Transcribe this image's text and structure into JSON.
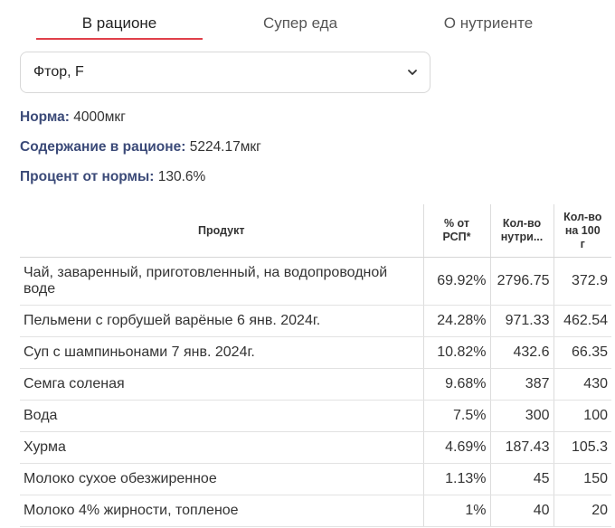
{
  "tabs": [
    {
      "label": "В рационе",
      "active": true
    },
    {
      "label": "Супер еда",
      "active": false
    },
    {
      "label": "О нутриенте",
      "active": false
    }
  ],
  "nutrient_select": {
    "value": "Фтор, F"
  },
  "info": {
    "norm_label": "Норма:",
    "norm_value": "4000мкг",
    "content_label": "Содержание в рационе:",
    "content_value": "5224.17мкг",
    "percent_label": "Процент от нормы:",
    "percent_value": "130.6%"
  },
  "table": {
    "headers": {
      "product": "Продукт",
      "pct_line1": "% от",
      "pct_line2": "РСП*",
      "amount_line1": "Кол-во",
      "amount_line2": "нутри...",
      "per100_line1": "Кол-во",
      "per100_line2": "на 100",
      "per100_line3": "г"
    },
    "rows": [
      {
        "name": "Чай, заваренный, приготовленный, на водопроводной воде",
        "pct": "69.92%",
        "amount": "2796.75",
        "per100": "372.9"
      },
      {
        "name": "Пельмени с горбушей варёные 6 янв. 2024г.",
        "pct": "24.28%",
        "amount": "971.33",
        "per100": "462.54"
      },
      {
        "name": "Суп с шампиньонами 7 янв. 2024г.",
        "pct": "10.82%",
        "amount": "432.6",
        "per100": "66.35"
      },
      {
        "name": "Семга соленая",
        "pct": "9.68%",
        "amount": "387",
        "per100": "430"
      },
      {
        "name": "Вода",
        "pct": "7.5%",
        "amount": "300",
        "per100": "100"
      },
      {
        "name": "Хурма",
        "pct": "4.69%",
        "amount": "187.43",
        "per100": "105.3"
      },
      {
        "name": "Молоко сухое обезжиренное",
        "pct": "1.13%",
        "amount": "45",
        "per100": "150"
      },
      {
        "name": "Молоко 4% жирности, топленое",
        "pct": "1%",
        "amount": "40",
        "per100": "20"
      }
    ]
  }
}
